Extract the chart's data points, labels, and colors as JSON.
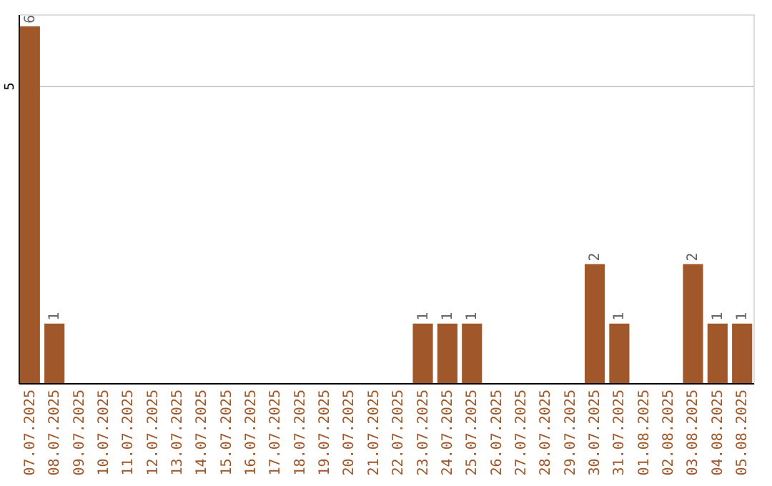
{
  "chart_data": {
    "type": "bar",
    "categories": [
      "07.07.2025",
      "08.07.2025",
      "09.07.2025",
      "10.07.2025",
      "11.07.2025",
      "12.07.2025",
      "13.07.2025",
      "14.07.2025",
      "15.07.2025",
      "16.07.2025",
      "17.07.2025",
      "18.07.2025",
      "19.07.2025",
      "20.07.2025",
      "21.07.2025",
      "22.07.2025",
      "23.07.2025",
      "24.07.2025",
      "25.07.2025",
      "26.07.2025",
      "27.07.2025",
      "28.07.2025",
      "29.07.2025",
      "30.07.2025",
      "31.07.2025",
      "01.08.2025",
      "02.08.2025",
      "03.08.2025",
      "04.08.2025",
      "05.08.2025"
    ],
    "values": [
      6,
      1,
      0,
      0,
      0,
      0,
      0,
      0,
      0,
      0,
      0,
      0,
      0,
      0,
      0,
      0,
      1,
      1,
      1,
      0,
      0,
      0,
      0,
      2,
      1,
      0,
      0,
      2,
      1,
      1
    ],
    "value_labels": [
      "6",
      "1",
      null,
      null,
      null,
      null,
      null,
      null,
      null,
      null,
      null,
      null,
      null,
      null,
      null,
      null,
      "1",
      "1",
      "1",
      null,
      null,
      null,
      null,
      "2",
      "1",
      null,
      null,
      "2",
      "1",
      "1"
    ],
    "color": "#a0582a",
    "ylim": [
      0,
      6.2
    ],
    "yticks": [
      5
    ],
    "grid": "y"
  }
}
